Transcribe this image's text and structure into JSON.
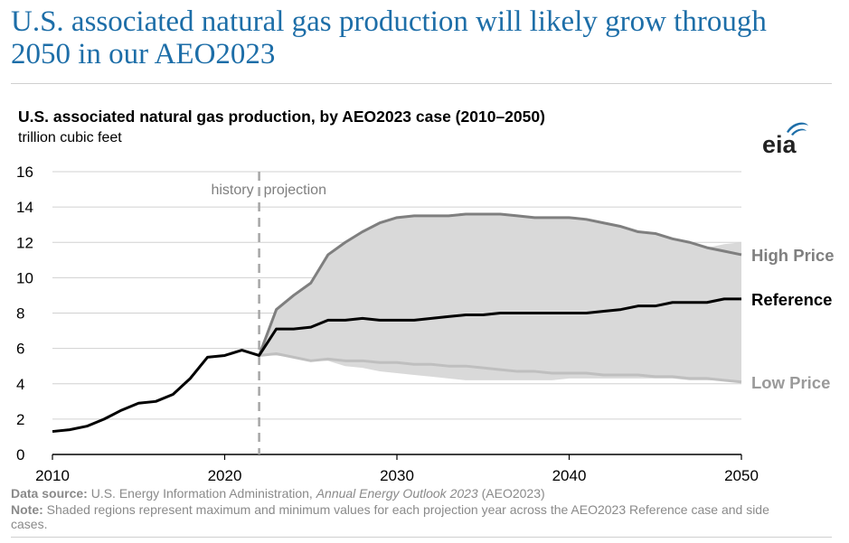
{
  "headline": "U.S. associated natural gas production will likely grow through 2050 in our AEO2023",
  "chart_data": {
    "type": "line",
    "title": "U.S. associated natural gas production, by AEO2023 case (2010–2050)",
    "units": "trillion cubic feet",
    "xlim": [
      2010,
      2050
    ],
    "ylim": [
      0,
      16
    ],
    "x_ticks": [
      2010,
      2020,
      2030,
      2040,
      2050
    ],
    "y_ticks": [
      0,
      2,
      4,
      6,
      8,
      10,
      12,
      14,
      16
    ],
    "grid": true,
    "divider_year": 2022,
    "divider_labels": {
      "left": "history",
      "right": "projection"
    },
    "series": [
      {
        "name": "Reference",
        "color": "#000000",
        "x": [
          2010,
          2011,
          2012,
          2013,
          2014,
          2015,
          2016,
          2017,
          2018,
          2019,
          2020,
          2021,
          2022,
          2023,
          2024,
          2025,
          2026,
          2027,
          2028,
          2029,
          2030,
          2031,
          2032,
          2033,
          2034,
          2035,
          2036,
          2037,
          2038,
          2039,
          2040,
          2041,
          2042,
          2043,
          2044,
          2045,
          2046,
          2047,
          2048,
          2049,
          2050
        ],
        "values": [
          1.3,
          1.4,
          1.6,
          2.0,
          2.5,
          2.9,
          3.0,
          3.4,
          4.3,
          5.5,
          5.6,
          5.9,
          5.6,
          7.1,
          7.1,
          7.2,
          7.6,
          7.6,
          7.7,
          7.6,
          7.6,
          7.6,
          7.7,
          7.8,
          7.9,
          7.9,
          8.0,
          8.0,
          8.0,
          8.0,
          8.0,
          8.0,
          8.1,
          8.2,
          8.4,
          8.4,
          8.6,
          8.6,
          8.6,
          8.8,
          8.8
        ]
      },
      {
        "name": "High Price",
        "color": "#7f7f7f",
        "x": [
          2022,
          2023,
          2024,
          2025,
          2026,
          2027,
          2028,
          2029,
          2030,
          2031,
          2032,
          2033,
          2034,
          2035,
          2036,
          2037,
          2038,
          2039,
          2040,
          2041,
          2042,
          2043,
          2044,
          2045,
          2046,
          2047,
          2048,
          2049,
          2050
        ],
        "values": [
          5.6,
          8.2,
          9.0,
          9.7,
          11.3,
          12.0,
          12.6,
          13.1,
          13.4,
          13.5,
          13.5,
          13.5,
          13.6,
          13.6,
          13.6,
          13.5,
          13.4,
          13.4,
          13.4,
          13.3,
          13.1,
          12.9,
          12.6,
          12.5,
          12.2,
          12.0,
          11.7,
          11.5,
          11.3
        ]
      },
      {
        "name": "Low Price",
        "color": "#bfbfbf",
        "x": [
          2022,
          2023,
          2024,
          2025,
          2026,
          2027,
          2028,
          2029,
          2030,
          2031,
          2032,
          2033,
          2034,
          2035,
          2036,
          2037,
          2038,
          2039,
          2040,
          2041,
          2042,
          2043,
          2044,
          2045,
          2046,
          2047,
          2048,
          2049,
          2050
        ],
        "values": [
          5.6,
          5.7,
          5.5,
          5.3,
          5.4,
          5.3,
          5.3,
          5.2,
          5.2,
          5.1,
          5.1,
          5.0,
          5.0,
          4.9,
          4.8,
          4.7,
          4.7,
          4.6,
          4.6,
          4.6,
          4.5,
          4.5,
          4.5,
          4.4,
          4.4,
          4.3,
          4.3,
          4.2,
          4.1
        ]
      }
    ],
    "shaded_range": {
      "x": [
        2022,
        2023,
        2024,
        2025,
        2026,
        2027,
        2028,
        2029,
        2030,
        2031,
        2032,
        2033,
        2034,
        2035,
        2036,
        2037,
        2038,
        2039,
        2040,
        2041,
        2042,
        2043,
        2044,
        2045,
        2046,
        2047,
        2048,
        2049,
        2050
      ],
      "max": [
        5.6,
        8.2,
        9.0,
        9.7,
        11.3,
        12.0,
        12.6,
        13.1,
        13.4,
        13.5,
        13.5,
        13.5,
        13.6,
        13.6,
        13.6,
        13.5,
        13.4,
        13.4,
        13.4,
        13.3,
        13.1,
        12.9,
        12.6,
        12.5,
        12.2,
        12.0,
        11.7,
        11.9,
        12.0
      ],
      "min": [
        5.6,
        5.6,
        5.5,
        5.3,
        5.3,
        5.0,
        4.9,
        4.7,
        4.6,
        4.5,
        4.4,
        4.3,
        4.2,
        4.2,
        4.2,
        4.2,
        4.2,
        4.2,
        4.3,
        4.3,
        4.3,
        4.3,
        4.3,
        4.3,
        4.3,
        4.2,
        4.2,
        4.2,
        4.1
      ],
      "color": "#d9d9d9"
    }
  },
  "logo_text": "eia",
  "footer": {
    "source_label": "Data source:",
    "source_text": " U.S. Energy Information Administration, ",
    "source_italic": "Annual Energy Outlook 2023",
    "source_tail": " (AEO2023)",
    "note_label": "Note:",
    "note_text": " Shaded regions represent maximum and minimum values for each projection year across the AEO2023 Reference case and side cases."
  },
  "colors": {
    "headline": "#1d6ea8",
    "logo": "#1d6ea8",
    "footer": "#8a8a8a"
  }
}
